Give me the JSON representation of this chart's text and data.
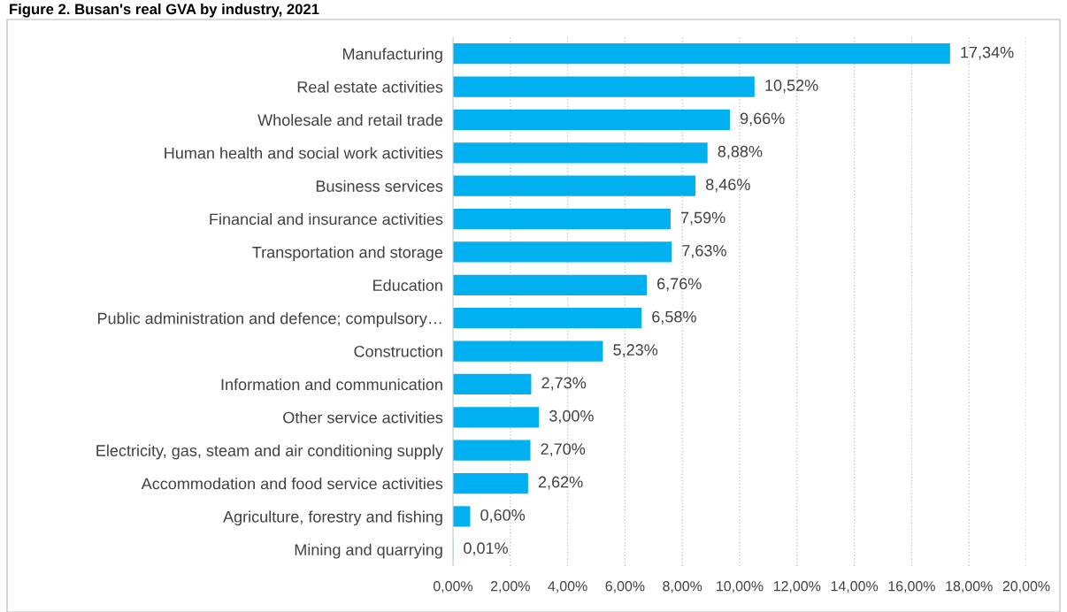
{
  "chart_data": {
    "type": "bar",
    "orientation": "horizontal",
    "title": "Figure 2. Busan's real GVA by industry, 2021",
    "categories": [
      "Manufacturing",
      "Real estate activities",
      "Wholesale and retail trade",
      "Human health and social work activities",
      "Business services",
      "Financial and insurance activities",
      "Transportation and storage",
      "Education",
      "Public administration and defence; compulsory…",
      "Construction",
      "Information and communication",
      "Other service activities",
      "Electricity, gas, steam and air conditioning supply",
      "Accommodation and food service activities",
      "Agriculture, forestry and fishing",
      "Mining and quarrying"
    ],
    "values": [
      17.34,
      10.52,
      9.66,
      8.88,
      8.46,
      7.59,
      7.63,
      6.76,
      6.58,
      5.23,
      2.73,
      3.0,
      2.7,
      2.62,
      0.6,
      0.01
    ],
    "value_labels": [
      "17,34%",
      "10,52%",
      "9,66%",
      "8,88%",
      "8,46%",
      "7,59%",
      "7,63%",
      "6,76%",
      "6,58%",
      "5,23%",
      "2,73%",
      "3,00%",
      "2,70%",
      "2,62%",
      "0,60%",
      "0,01%"
    ],
    "color": "#00b0f0",
    "xlim": [
      0,
      20
    ],
    "xticks": [
      {
        "value": 0,
        "label": "0,00%"
      },
      {
        "value": 2,
        "label": "2,00%"
      },
      {
        "value": 4,
        "label": "4,00%"
      },
      {
        "value": 6,
        "label": "6,00%"
      },
      {
        "value": 8,
        "label": "8,00%"
      },
      {
        "value": 10,
        "label": "10,00%"
      },
      {
        "value": 12,
        "label": "12,00%"
      },
      {
        "value": 14,
        "label": "14,00%"
      },
      {
        "value": 16,
        "label": "16,00%"
      },
      {
        "value": 18,
        "label": "18,00%"
      },
      {
        "value": 20,
        "label": "20,00%"
      }
    ],
    "grid": "x"
  }
}
